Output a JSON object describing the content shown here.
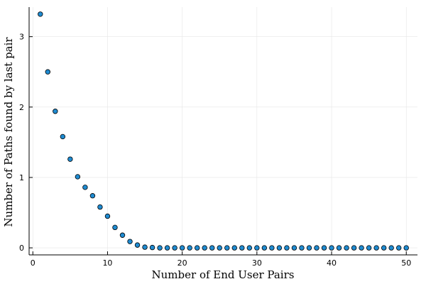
{
  "chart_data": {
    "type": "scatter",
    "xlabel": "Number of End User Pairs",
    "ylabel": "Number of Paths found by last pair",
    "xlim": [
      -0.5,
      51.5
    ],
    "ylim": [
      -0.1,
      3.42
    ],
    "xticks": [
      0,
      10,
      20,
      30,
      40,
      50
    ],
    "yticks": [
      0,
      1,
      2,
      3
    ],
    "grid": true,
    "legend": "none",
    "marker_color": "#1f8bd1",
    "marker_edge_color": "#000000",
    "series": [
      {
        "x": [
          1,
          2,
          3,
          4,
          5,
          6,
          7,
          8,
          9,
          10,
          11,
          12,
          13,
          14,
          15,
          16,
          17,
          18,
          19,
          20,
          21,
          22,
          23,
          24,
          25,
          26,
          27,
          28,
          29,
          30,
          31,
          32,
          33,
          34,
          35,
          36,
          37,
          38,
          39,
          40,
          41,
          42,
          43,
          44,
          45,
          46,
          47,
          48,
          49,
          50
        ],
        "values": [
          3.32,
          2.5,
          1.94,
          1.58,
          1.26,
          1.01,
          0.86,
          0.74,
          0.58,
          0.45,
          0.29,
          0.18,
          0.09,
          0.04,
          0.01,
          0.005,
          0,
          0,
          0,
          0,
          0,
          0,
          0,
          0,
          0,
          0,
          0,
          0,
          0,
          0,
          0,
          0,
          0,
          0,
          0,
          0,
          0,
          0,
          0,
          0,
          0,
          0,
          0,
          0,
          0,
          0,
          0,
          0,
          0,
          0
        ]
      }
    ]
  }
}
